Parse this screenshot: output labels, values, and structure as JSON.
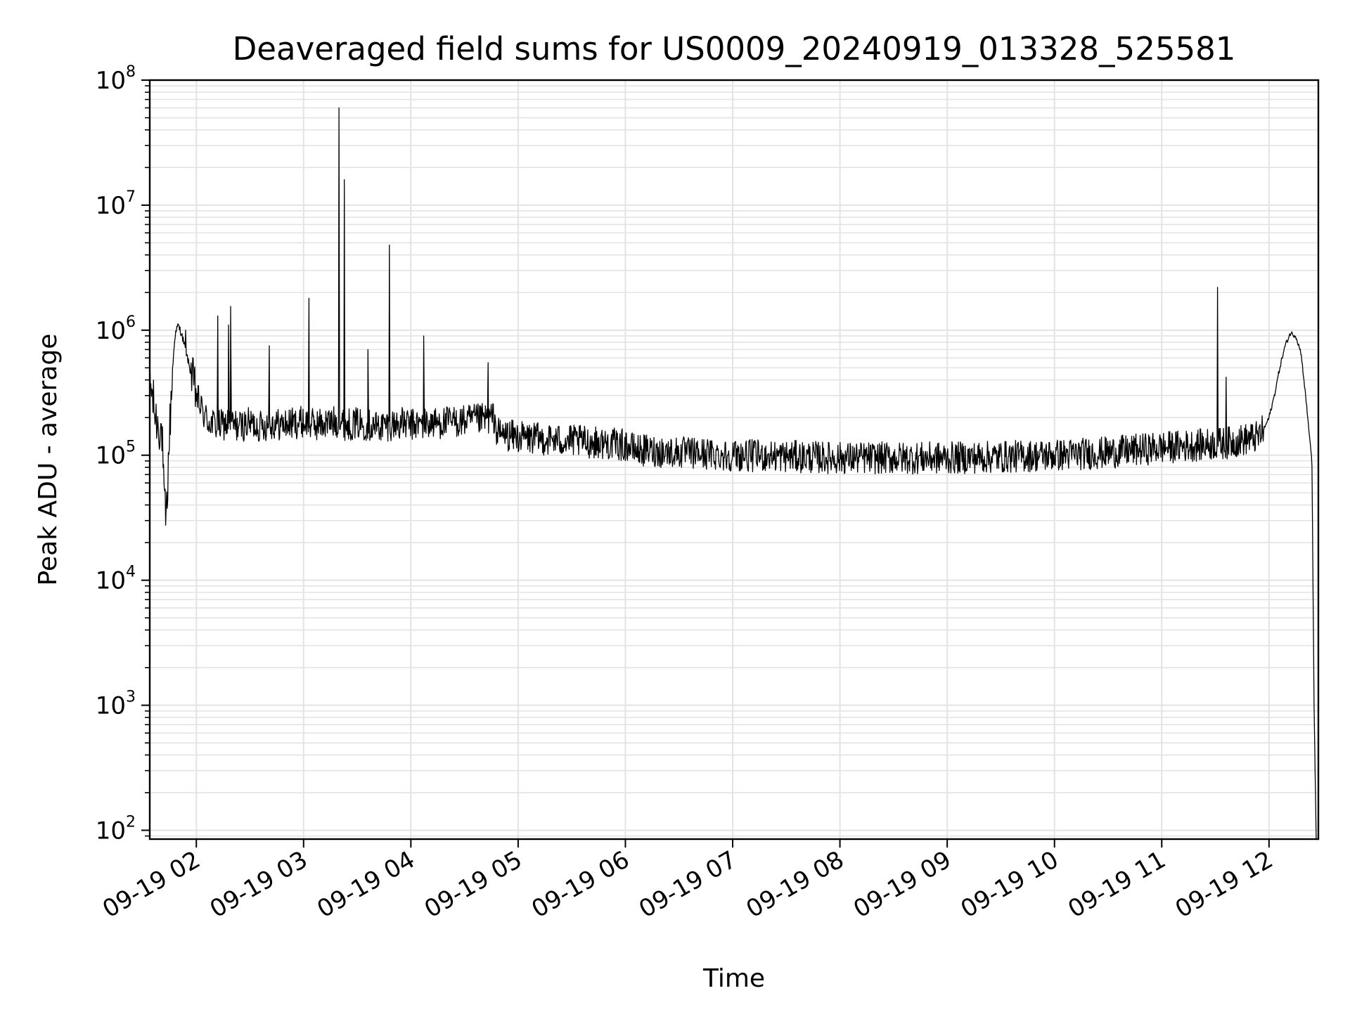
{
  "chart_data": {
    "type": "line",
    "title": "Deaveraged field sums for US0009_20240919_013328_525581",
    "xlabel": "Time",
    "ylabel": "Peak ADU - average",
    "yscale": "log",
    "ylim": [
      85,
      100000000
    ],
    "yticks": [
      {
        "base": "10",
        "exp": "2",
        "value": 100
      },
      {
        "base": "10",
        "exp": "3",
        "value": 1000
      },
      {
        "base": "10",
        "exp": "4",
        "value": 10000
      },
      {
        "base": "10",
        "exp": "5",
        "value": 100000
      },
      {
        "base": "10",
        "exp": "6",
        "value": 1000000
      },
      {
        "base": "10",
        "exp": "7",
        "value": 10000000
      },
      {
        "base": "10",
        "exp": "8",
        "value": 100000000
      }
    ],
    "xlim_hours": [
      1.566,
      12.46
    ],
    "xticks": [
      {
        "label": "09-19 02",
        "hour": 2
      },
      {
        "label": "09-19 03",
        "hour": 3
      },
      {
        "label": "09-19 04",
        "hour": 4
      },
      {
        "label": "09-19 05",
        "hour": 5
      },
      {
        "label": "09-19 06",
        "hour": 6
      },
      {
        "label": "09-19 07",
        "hour": 7
      },
      {
        "label": "09-19 08",
        "hour": 8
      },
      {
        "label": "09-19 09",
        "hour": 9
      },
      {
        "label": "09-19 10",
        "hour": 10
      },
      {
        "label": "09-19 11",
        "hour": 11
      },
      {
        "label": "09-19 12",
        "hour": 12
      }
    ],
    "grid": true,
    "line_color": "#000000",
    "series": [
      {
        "name": "",
        "x_hours": [
          1.566,
          1.62,
          1.68,
          1.7,
          1.72,
          1.75,
          1.78,
          1.8,
          1.83,
          1.86,
          1.9,
          1.95,
          2.0,
          2.05,
          2.1,
          2.2,
          2.3,
          2.4,
          2.5,
          2.6,
          2.7,
          2.8,
          2.9,
          3.0,
          3.1,
          3.2,
          3.3,
          3.4,
          3.5,
          3.6,
          3.7,
          3.8,
          3.9,
          4.0,
          4.2,
          4.4,
          4.6,
          4.78,
          4.8,
          5.0,
          5.2,
          5.5,
          5.8,
          6.0,
          6.1,
          6.5,
          7.0,
          7.5,
          8.0,
          8.5,
          9.0,
          9.5,
          10.0,
          10.5,
          11.0,
          11.3,
          11.6,
          11.9,
          11.95,
          12.0,
          12.05,
          12.1,
          12.15,
          12.2,
          12.25,
          12.3,
          12.35,
          12.4,
          12.42,
          12.44
        ],
        "values": [
          400000,
          200000,
          150000,
          40000,
          30000,
          150000,
          500000,
          900000,
          1100000,
          950000,
          700000,
          450000,
          300000,
          230000,
          190000,
          170000,
          180000,
          170000,
          180000,
          170000,
          180000,
          175000,
          180000,
          185000,
          175000,
          180000,
          185000,
          175000,
          180000,
          175000,
          170000,
          175000,
          180000,
          175000,
          180000,
          185000,
          190000,
          200000,
          150000,
          140000,
          135000,
          130000,
          125000,
          120000,
          110000,
          105000,
          100000,
          98000,
          95000,
          95000,
          95000,
          97000,
          100000,
          105000,
          115000,
          120000,
          125000,
          140000,
          160000,
          200000,
          300000,
          500000,
          750000,
          950000,
          900000,
          650000,
          250000,
          90000,
          1000,
          85
        ],
        "spikes": [
          {
            "hour": 1.9,
            "value": 1000000
          },
          {
            "hour": 2.2,
            "value": 1300000
          },
          {
            "hour": 2.3,
            "value": 1100000
          },
          {
            "hour": 2.32,
            "value": 1550000
          },
          {
            "hour": 2.68,
            "value": 750000
          },
          {
            "hour": 3.05,
            "value": 1800000
          },
          {
            "hour": 3.33,
            "value": 60000000
          },
          {
            "hour": 3.38,
            "value": 16000000
          },
          {
            "hour": 3.6,
            "value": 700000
          },
          {
            "hour": 3.8,
            "value": 4800000
          },
          {
            "hour": 4.12,
            "value": 900000
          },
          {
            "hour": 4.72,
            "value": 550000
          },
          {
            "hour": 11.52,
            "value": 2200000
          },
          {
            "hour": 11.6,
            "value": 420000
          }
        ]
      }
    ]
  }
}
